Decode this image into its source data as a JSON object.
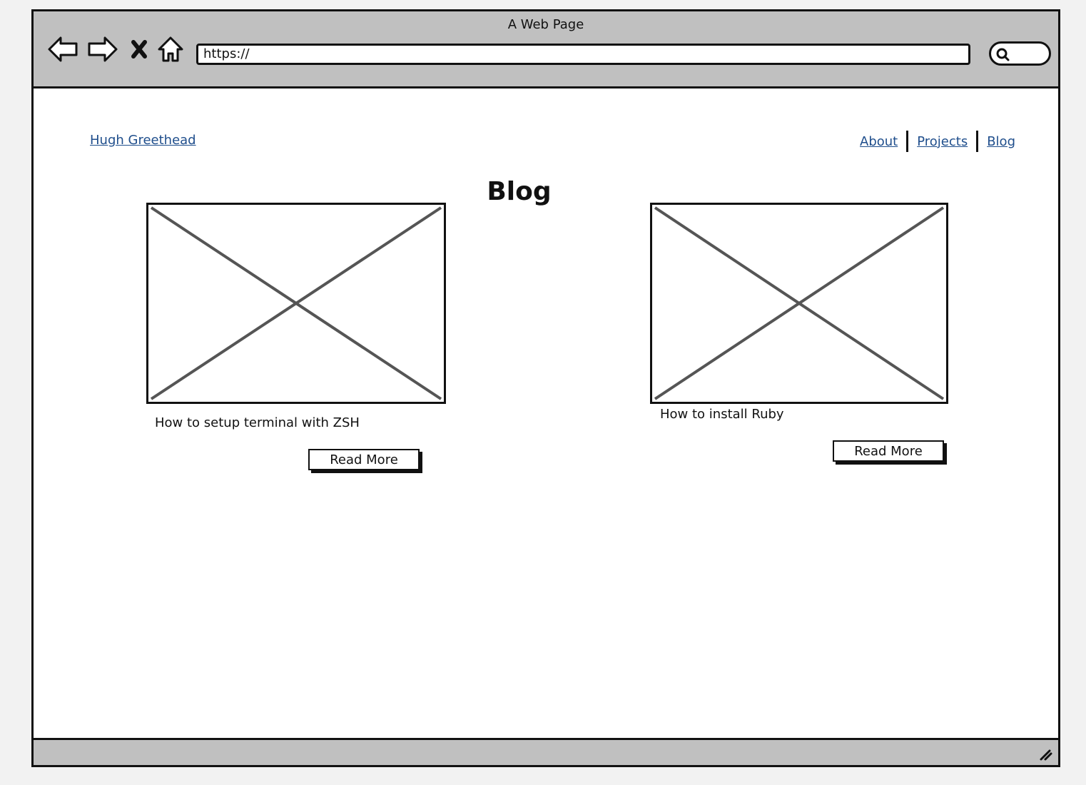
{
  "window": {
    "title": "A Web Page"
  },
  "toolbar": {
    "back_icon": "back-arrow-icon",
    "forward_icon": "forward-arrow-icon",
    "stop_icon": "close-icon",
    "home_icon": "home-icon",
    "url_value": "https://",
    "search_icon": "search-icon"
  },
  "header": {
    "site_name": "Hugh Greethead",
    "nav": [
      {
        "label": "About"
      },
      {
        "label": "Projects"
      },
      {
        "label": "Blog"
      }
    ]
  },
  "main": {
    "title": "Blog",
    "posts": [
      {
        "title": "How to setup terminal with ZSH",
        "button_label": "Read More",
        "image": "image-placeholder"
      },
      {
        "title": "How to install Ruby",
        "button_label": "Read More",
        "image": "image-placeholder"
      }
    ]
  },
  "colors": {
    "chrome": "#c0c0c0",
    "link": "#1f4e8c",
    "border": "#111111"
  }
}
